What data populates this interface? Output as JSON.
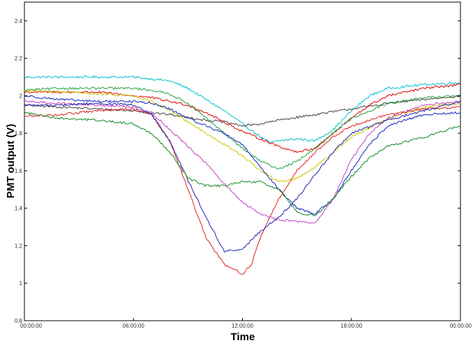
{
  "chart_data": {
    "type": "line",
    "title": "",
    "xlabel": "Time",
    "ylabel": "PMT output (V)",
    "xlim": [
      "00:00:00",
      "24:00:00"
    ],
    "ylim": [
      0.8,
      2.5
    ],
    "x_ticks": [
      "00:00:00",
      "06:00:00",
      "12:00:00",
      "18:00:00",
      "00:00:00"
    ],
    "y_ticks": [
      0.8,
      1,
      1.2,
      1.4,
      1.6,
      1.8,
      2,
      2.2,
      2.4
    ],
    "grid": false,
    "x_unit": "hours",
    "series": [
      {
        "color": "#00c0c8",
        "points": [
          [
            0,
            2.1
          ],
          [
            2,
            2.1
          ],
          [
            4,
            2.1
          ],
          [
            6,
            2.1
          ],
          [
            8,
            2.08
          ],
          [
            9,
            2.04
          ],
          [
            10,
            1.98
          ],
          [
            11,
            1.92
          ],
          [
            12,
            1.85
          ],
          [
            13,
            1.78
          ],
          [
            13.5,
            1.75
          ],
          [
            14,
            1.76
          ],
          [
            15,
            1.77
          ],
          [
            16,
            1.76
          ],
          [
            17,
            1.82
          ],
          [
            18,
            1.92
          ],
          [
            19,
            2.0
          ],
          [
            20,
            2.04
          ],
          [
            22,
            2.06
          ],
          [
            24,
            2.07
          ]
        ]
      },
      {
        "color": "#404040",
        "points": [
          [
            0,
            1.95
          ],
          [
            2,
            1.94
          ],
          [
            4,
            1.93
          ],
          [
            6,
            1.92
          ],
          [
            8,
            1.9
          ],
          [
            10,
            1.87
          ],
          [
            11,
            1.86
          ],
          [
            12,
            1.84
          ],
          [
            13,
            1.85
          ],
          [
            14,
            1.87
          ],
          [
            16,
            1.9
          ],
          [
            18,
            1.93
          ],
          [
            20,
            1.96
          ],
          [
            22,
            1.98
          ],
          [
            24,
            2.0
          ]
        ]
      },
      {
        "color": "#e00000",
        "points": [
          [
            0,
            2.02
          ],
          [
            2,
            2.02
          ],
          [
            4,
            2.02
          ],
          [
            6,
            2.0
          ],
          [
            7,
            1.99
          ],
          [
            8,
            1.97
          ],
          [
            9,
            1.95
          ],
          [
            10,
            1.91
          ],
          [
            11,
            1.86
          ],
          [
            12,
            1.81
          ],
          [
            13,
            1.77
          ],
          [
            14,
            1.73
          ],
          [
            15,
            1.7
          ],
          [
            16,
            1.72
          ],
          [
            17,
            1.8
          ],
          [
            18,
            1.88
          ],
          [
            19,
            1.95
          ],
          [
            20,
            2.0
          ],
          [
            22,
            2.04
          ],
          [
            24,
            2.06
          ]
        ]
      },
      {
        "color": "#20a040",
        "points": [
          [
            0,
            2.03
          ],
          [
            2,
            2.04
          ],
          [
            4,
            2.04
          ],
          [
            6,
            2.04
          ],
          [
            7,
            2.03
          ],
          [
            8,
            2.01
          ],
          [
            9,
            1.96
          ],
          [
            10,
            1.88
          ],
          [
            11,
            1.8
          ],
          [
            12,
            1.72
          ],
          [
            13,
            1.65
          ],
          [
            14,
            1.61
          ],
          [
            15,
            1.65
          ],
          [
            16,
            1.72
          ],
          [
            17,
            1.8
          ],
          [
            18,
            1.88
          ],
          [
            20,
            1.96
          ],
          [
            22,
            1.99
          ],
          [
            24,
            2.0
          ]
        ]
      },
      {
        "color": "#c8c800",
        "points": [
          [
            0,
            2.03
          ],
          [
            2,
            2.02
          ],
          [
            4,
            2.01
          ],
          [
            6,
            2.0
          ],
          [
            7,
            1.97
          ],
          [
            8,
            1.92
          ],
          [
            9,
            1.86
          ],
          [
            10,
            1.8
          ],
          [
            11,
            1.74
          ],
          [
            12,
            1.68
          ],
          [
            13,
            1.6
          ],
          [
            14,
            1.54
          ],
          [
            15,
            1.56
          ],
          [
            16,
            1.62
          ],
          [
            17,
            1.7
          ],
          [
            18,
            1.78
          ],
          [
            20,
            1.88
          ],
          [
            22,
            1.94
          ],
          [
            24,
            1.96
          ]
        ]
      },
      {
        "color": "#1020c0",
        "points": [
          [
            0,
            2.0
          ],
          [
            2,
            1.98
          ],
          [
            4,
            1.97
          ],
          [
            6,
            1.97
          ],
          [
            7,
            1.96
          ],
          [
            8,
            1.93
          ],
          [
            9,
            1.88
          ],
          [
            10,
            1.84
          ],
          [
            11,
            1.8
          ],
          [
            12,
            1.74
          ],
          [
            13,
            1.62
          ],
          [
            14,
            1.5
          ],
          [
            15,
            1.4
          ],
          [
            16,
            1.37
          ],
          [
            17,
            1.45
          ],
          [
            18,
            1.6
          ],
          [
            19,
            1.74
          ],
          [
            20,
            1.84
          ],
          [
            22,
            1.9
          ],
          [
            24,
            1.91
          ]
        ]
      },
      {
        "color": "#c040c0",
        "points": [
          [
            0,
            1.97
          ],
          [
            2,
            1.96
          ],
          [
            4,
            1.95
          ],
          [
            6,
            1.94
          ],
          [
            7,
            1.91
          ],
          [
            8,
            1.82
          ],
          [
            9,
            1.73
          ],
          [
            10,
            1.64
          ],
          [
            11,
            1.53
          ],
          [
            12,
            1.43
          ],
          [
            13,
            1.37
          ],
          [
            14,
            1.34
          ],
          [
            15,
            1.33
          ],
          [
            16,
            1.32
          ],
          [
            17,
            1.45
          ],
          [
            18,
            1.66
          ],
          [
            19,
            1.8
          ],
          [
            20,
            1.88
          ],
          [
            22,
            1.95
          ],
          [
            24,
            1.97
          ]
        ]
      },
      {
        "color": "#e02020",
        "points": [
          [
            0,
            1.89
          ],
          [
            2,
            1.9
          ],
          [
            4,
            1.92
          ],
          [
            6,
            1.93
          ],
          [
            7,
            1.9
          ],
          [
            8,
            1.76
          ],
          [
            9,
            1.5
          ],
          [
            10,
            1.24
          ],
          [
            11,
            1.1
          ],
          [
            12,
            1.05
          ],
          [
            12.5,
            1.1
          ],
          [
            13,
            1.25
          ],
          [
            14,
            1.45
          ],
          [
            15,
            1.6
          ],
          [
            16,
            1.7
          ],
          [
            17,
            1.78
          ],
          [
            18,
            1.84
          ],
          [
            20,
            1.9
          ],
          [
            22,
            1.93
          ],
          [
            24,
            1.94
          ]
        ]
      },
      {
        "color": "#2020b0",
        "points": [
          [
            0,
            1.95
          ],
          [
            2,
            1.95
          ],
          [
            4,
            1.96
          ],
          [
            6,
            1.95
          ],
          [
            7,
            1.9
          ],
          [
            8,
            1.76
          ],
          [
            9,
            1.55
          ],
          [
            10,
            1.35
          ],
          [
            11,
            1.17
          ],
          [
            12,
            1.18
          ],
          [
            13,
            1.28
          ],
          [
            14,
            1.35
          ],
          [
            15,
            1.45
          ],
          [
            16,
            1.58
          ],
          [
            17,
            1.7
          ],
          [
            18,
            1.8
          ],
          [
            20,
            1.87
          ],
          [
            22,
            1.92
          ],
          [
            24,
            1.97
          ]
        ]
      },
      {
        "color": "#108820",
        "points": [
          [
            0,
            1.91
          ],
          [
            2,
            1.88
          ],
          [
            4,
            1.87
          ],
          [
            6,
            1.85
          ],
          [
            7,
            1.8
          ],
          [
            8,
            1.7
          ],
          [
            9,
            1.56
          ],
          [
            10,
            1.52
          ],
          [
            11,
            1.52
          ],
          [
            12,
            1.54
          ],
          [
            13,
            1.54
          ],
          [
            14,
            1.5
          ],
          [
            15,
            1.38
          ],
          [
            16,
            1.36
          ],
          [
            17,
            1.45
          ],
          [
            18,
            1.57
          ],
          [
            19,
            1.67
          ],
          [
            20,
            1.73
          ],
          [
            22,
            1.78
          ],
          [
            24,
            1.84
          ]
        ]
      }
    ]
  }
}
